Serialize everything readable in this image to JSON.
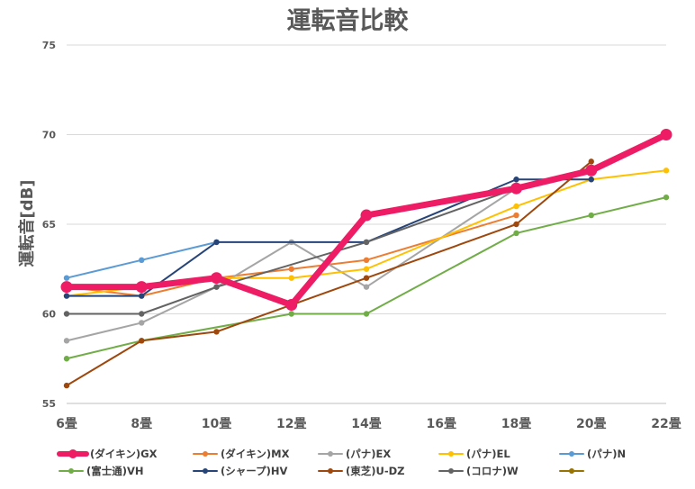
{
  "chart_data": {
    "type": "line",
    "title": "運転音比較",
    "xlabel": "",
    "ylabel": "運転音[dB]",
    "categories": [
      "6畳",
      "8畳",
      "10畳",
      "12畳",
      "14畳",
      "16畳",
      "18畳",
      "20畳",
      "22畳"
    ],
    "y_ticks": [
      "55",
      "60",
      "65",
      "70",
      "75"
    ],
    "ylim": [
      55,
      75
    ],
    "grid": "horizontal",
    "legend_position": "bottom",
    "series": [
      {
        "name": "(ダイキン)GX",
        "color": "#ee1c64",
        "emphasis": true,
        "values": [
          61.5,
          61.5,
          62,
          60.5,
          65.5,
          null,
          67,
          68,
          70
        ]
      },
      {
        "name": "(ダイキン)MX",
        "color": "#ed7d31",
        "values": [
          61.5,
          61,
          62,
          62.5,
          63,
          null,
          65.5,
          null,
          null
        ]
      },
      {
        "name": "(パナ)EX",
        "color": "#a5a5a5",
        "values": [
          58.5,
          59.5,
          61.5,
          64,
          61.5,
          null,
          67,
          null,
          null
        ]
      },
      {
        "name": "(パナ)EL",
        "color": "#ffc000",
        "values": [
          61,
          61.5,
          62,
          62,
          62.5,
          null,
          66,
          67.5,
          68
        ]
      },
      {
        "name": "(パナ)N",
        "color": "#5b9bd5",
        "values": [
          62,
          63,
          64,
          null,
          null,
          null,
          null,
          null,
          null
        ]
      },
      {
        "name": "(富士通)VH",
        "color": "#70ad47",
        "values": [
          57.5,
          58.5,
          null,
          60,
          60,
          null,
          64.5,
          65.5,
          66.5
        ]
      },
      {
        "name": "(シャープ)HV",
        "color": "#264478",
        "values": [
          61,
          61,
          64,
          null,
          64,
          null,
          67.5,
          67.5,
          null
        ]
      },
      {
        "name": "(東芝)U-DZ",
        "color": "#9e480e",
        "values": [
          56,
          58.5,
          59,
          null,
          62,
          null,
          65,
          68.5,
          null
        ]
      },
      {
        "name": "(コロナ)W",
        "color": "#636363",
        "values": [
          60,
          60,
          61.5,
          null,
          64,
          null,
          67,
          null,
          null
        ]
      },
      {
        "name": "",
        "color": "#997300",
        "values": [
          null,
          null,
          null,
          null,
          null,
          null,
          null,
          null,
          null
        ]
      }
    ]
  }
}
